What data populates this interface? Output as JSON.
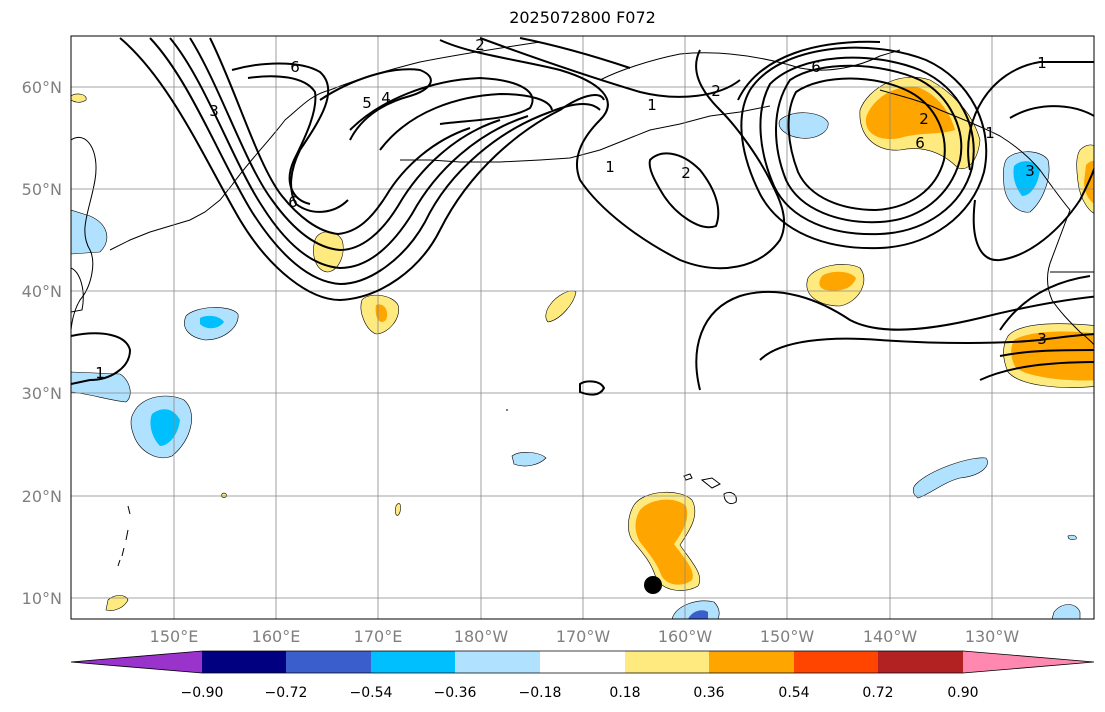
{
  "title": "2025072800 F072",
  "lat_labels": [
    "60°N",
    "50°N",
    "40°N",
    "30°N",
    "20°N",
    "10°N"
  ],
  "lon_labels": [
    "150°E",
    "160°E",
    "170°E",
    "180°W",
    "170°W",
    "160°W",
    "150°W",
    "140°W",
    "130°W"
  ],
  "colorbar": {
    "tick_labels": [
      "−0.90",
      "−0.72",
      "−0.54",
      "−0.36",
      "−0.18",
      "0.18",
      "0.36",
      "0.54",
      "0.72",
      "0.90"
    ],
    "colors": [
      "#9933cc",
      "#000080",
      "#3a5fcd",
      "#00bfff",
      "#b0e2ff",
      "#ffffff",
      "#ffea80",
      "#ffa500",
      "#ff4500",
      "#b22222",
      "#ff88b0"
    ]
  },
  "contour_labels": [
    "6",
    "2",
    "3",
    "5",
    "4",
    "6",
    "1",
    "2",
    "1",
    "6",
    "1",
    "2",
    "1",
    "3",
    "2",
    "3",
    "6",
    "1"
  ],
  "fill_colors": {
    "light_blue": "#b0e2ff",
    "blue": "#00bfff",
    "dark_blue": "#3a5fcd",
    "yellow": "#ffea80",
    "orange": "#ffa500"
  }
}
